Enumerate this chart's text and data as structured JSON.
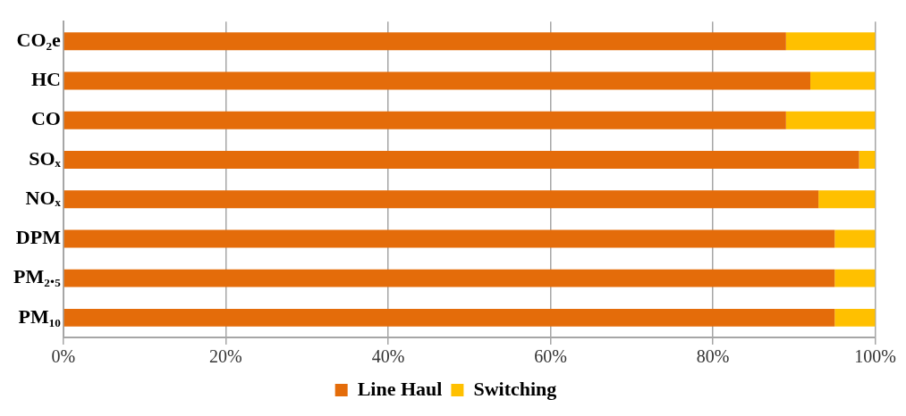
{
  "chart_data": {
    "type": "bar",
    "orientation": "horizontal",
    "stacked": true,
    "categories": [
      "CO₂e",
      "HC",
      "CO",
      "SOₓ",
      "NOₓ",
      "DPM",
      "PM₂.₅",
      "PM₁₀"
    ],
    "series": [
      {
        "name": "Line Haul",
        "color": "#e46c0a",
        "values": [
          89,
          92,
          89,
          98,
          93,
          95,
          95,
          95
        ]
      },
      {
        "name": "Switching",
        "color": "#ffc000",
        "values": [
          11,
          8,
          11,
          2,
          7,
          5,
          5,
          5
        ]
      }
    ],
    "xlim": [
      0,
      100
    ],
    "xticks": [
      {
        "value": 0,
        "label": "0%"
      },
      {
        "value": 20,
        "label": "20%"
      },
      {
        "value": 40,
        "label": "40%"
      },
      {
        "value": 60,
        "label": "60%"
      },
      {
        "value": 80,
        "label": "80%"
      },
      {
        "value": 100,
        "label": "100%"
      }
    ],
    "grid": "x",
    "legend": "bottom"
  }
}
